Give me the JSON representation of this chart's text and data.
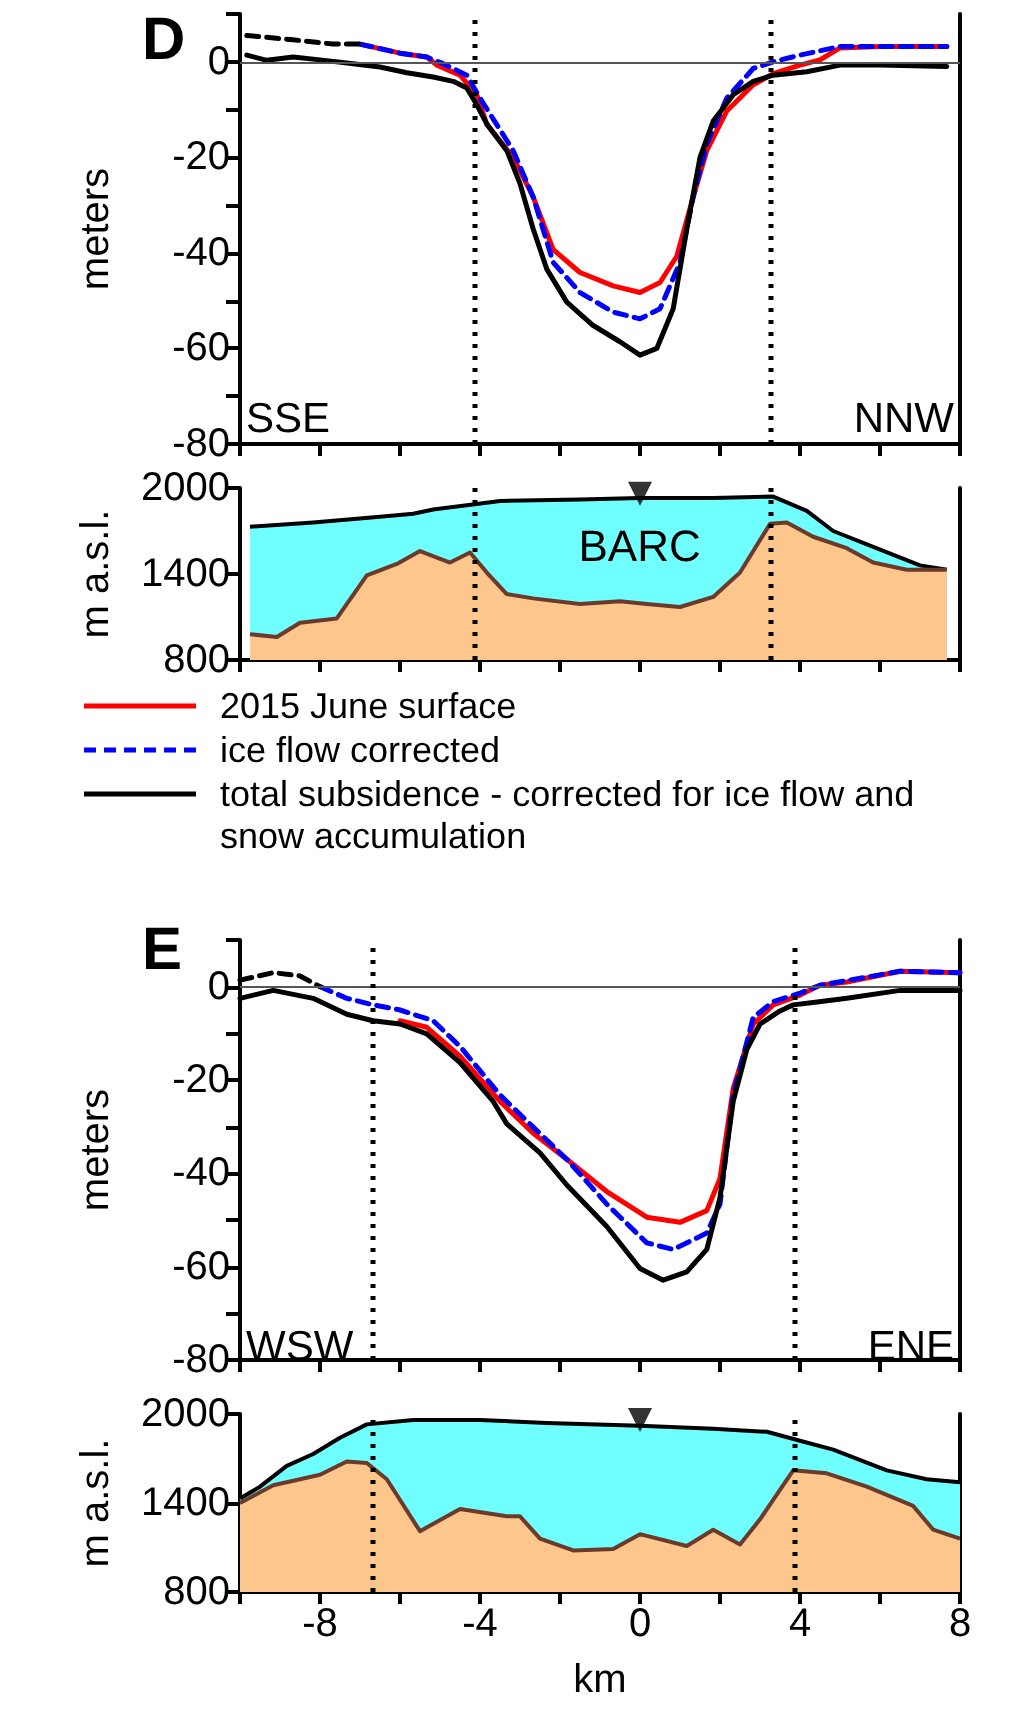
{
  "chart_data": [
    {
      "type": "line",
      "title": "D",
      "ylabel": "meters",
      "xlim": [
        -10,
        8
      ],
      "ylim": [
        -80,
        10
      ],
      "xticks": [
        {
          "value": -10,
          "label": null
        },
        -8,
        {
          "value": -6,
          "label": null
        },
        -4,
        {
          "value": -2,
          "label": null
        },
        0,
        {
          "value": 2,
          "label": null
        },
        4,
        {
          "value": 6,
          "label": null
        },
        8
      ],
      "yticks": [
        {
          "value": 10,
          "label": null
        },
        0,
        {
          "value": -10,
          "label": null
        },
        -20,
        {
          "value": -30,
          "label": null
        },
        -40,
        {
          "value": -50,
          "label": null
        },
        -60,
        {
          "value": -70,
          "label": null
        },
        -80
      ],
      "tick_labels": "y",
      "legend": "bottom",
      "annotations": [
        "SSE",
        "NNW"
      ],
      "ref_lines": [
        {
          "axis": "y",
          "value": 0,
          "color": "#555555",
          "line_style": "solid"
        },
        {
          "axis": "x",
          "value": -4.12,
          "color": "#000000",
          "line_style": "dotted"
        },
        {
          "axis": "x",
          "value": 3.28,
          "color": "#000000",
          "line_style": "dotted"
        }
      ],
      "series": [
        {
          "name": "2015 June surface",
          "color": "#ff0000",
          "line_style": "solid",
          "x": [
            -7.0,
            -6.0,
            -5.33,
            -5.08,
            -4.5,
            -4.08,
            -3.83,
            -3.17,
            -2.67,
            -2.17,
            -1.5,
            -0.67,
            0,
            0.5,
            0.92,
            1.33,
            1.67,
            2.17,
            2.83,
            3.33,
            4.0,
            4.5,
            5.0,
            6.0,
            7.67
          ],
          "values": [
            3.7,
            1.8,
            1.0,
            -0.7,
            -2.8,
            -6.9,
            -13.1,
            -20,
            -28.3,
            -39.3,
            -44.1,
            -46.9,
            -48.3,
            -46.2,
            -40.7,
            -28.3,
            -18.6,
            -10.3,
            -4.8,
            -2.5,
            -0.7,
            0.4,
            2.9,
            3.2,
            3.2
          ]
        },
        {
          "name": "ice flow corrected",
          "color": "#0000ff",
          "line_style": "dashed",
          "x": [
            -7.0,
            -6.0,
            -5.33,
            -4.92,
            -4.33,
            -4.0,
            -3.17,
            -2.67,
            -2.17,
            -1.5,
            -0.67,
            0,
            0.5,
            1.0,
            1.33,
            1.67,
            2.17,
            2.83,
            3.33,
            4.0,
            5.0,
            7.67
          ],
          "values": [
            3.7,
            1.8,
            1.0,
            -0.4,
            -2.8,
            -7.6,
            -18.6,
            -28.3,
            -42,
            -48.3,
            -52.4,
            -53.8,
            -51.7,
            -42,
            -28.3,
            -17.2,
            -7.6,
            -1.4,
            0,
            1.4,
            3.2,
            3.2
          ]
        },
        {
          "name": "total subsidence - corrected for ice flow and snow accumulation",
          "color": "#000000",
          "line_style": "solid",
          "x": [
            -9.83,
            -9.33,
            -8.67,
            -8.0,
            -7.17,
            -6.5,
            -5.83,
            -5.17,
            -4.67,
            -4.33,
            -4.08,
            -3.83,
            -3.33,
            -3.0,
            -2.67,
            -2.33,
            -1.83,
            -1.17,
            -0.5,
            0,
            0.42,
            0.83,
            1.17,
            1.5,
            1.83,
            2.33,
            2.83,
            3.33,
            4.17,
            5.0,
            6.0,
            7.67
          ],
          "values": [
            1.4,
            0.3,
            1.0,
            0.4,
            -0.4,
            -1.1,
            -2.3,
            -3.2,
            -4.1,
            -5.5,
            -9,
            -13,
            -18.6,
            -25.5,
            -35,
            -43.4,
            -50.3,
            -55.2,
            -58.6,
            -61.4,
            -60,
            -51.7,
            -35,
            -20,
            -12.4,
            -6.9,
            -4.1,
            -2.8,
            -2.1,
            -0.7,
            -0.7,
            -1.0
          ]
        },
        {
          "color": "#000000",
          "line_style": "dashed",
          "x": [
            -9.83,
            -8.67,
            -7.67,
            -7.0
          ],
          "values": [
            5.5,
            4.6,
            3.7,
            3.7
          ]
        }
      ]
    },
    {
      "type": "area",
      "ylabel": "m a.s.l.",
      "xlim": [
        -10,
        8
      ],
      "ylim": [
        800,
        2000
      ],
      "xticks": [
        {
          "value": -10,
          "label": null
        },
        -8,
        {
          "value": -6,
          "label": null
        },
        -4,
        {
          "value": -2,
          "label": null
        },
        0,
        {
          "value": 2,
          "label": null
        },
        4,
        {
          "value": 6,
          "label": null
        },
        8
      ],
      "yticks": [
        800,
        1400,
        2000
      ],
      "tick_labels": "y",
      "annotations": [
        "BARC"
      ],
      "ref_lines": [
        {
          "axis": "x",
          "value": -4.12,
          "color": "#000000",
          "line_style": "dotted"
        },
        {
          "axis": "x",
          "value": 3.28,
          "color": "#000000",
          "line_style": "dotted"
        }
      ],
      "series": [
        {
          "color": "#6fffff",
          "x": [
            -9.75,
            -8.17,
            -6.5,
            -5.67,
            -5.17,
            -4.33,
            -3.5,
            -1.5,
            0,
            1.83,
            3.33,
            4.17,
            4.83,
            5.83,
            7.0,
            7.67
          ],
          "values": [
            1730,
            1760,
            1800,
            1820,
            1850,
            1880,
            1910,
            1920,
            1930,
            1930,
            1940,
            1840,
            1700,
            1590,
            1460,
            1430
          ]
        },
        {
          "color": "#fdc68c",
          "x": [
            -9.75,
            -9.08,
            -8.5,
            -7.58,
            -6.83,
            -6.08,
            -5.5,
            -4.75,
            -4.25,
            -3.83,
            -3.33,
            -2.67,
            -1.5,
            -0.5,
            0.17,
            1.0,
            1.83,
            2.5,
            3.25,
            3.67,
            4.33,
            5.17,
            5.83,
            6.67,
            7.67
          ],
          "values": [
            980,
            960,
            1060,
            1090,
            1390,
            1470,
            1560,
            1480,
            1550,
            1410,
            1260,
            1230,
            1190,
            1210,
            1190,
            1170,
            1240,
            1410,
            1750,
            1760,
            1660,
            1580,
            1480,
            1430,
            1430
          ]
        },
        {
          "type": "scatter",
          "color": "#000000",
          "marker": "triangle",
          "x": [
            0
          ],
          "values": [
            1960
          ]
        }
      ]
    },
    {
      "type": "line",
      "title": "E",
      "ylabel": "meters",
      "xlim": [
        -10,
        8
      ],
      "ylim": [
        -80,
        10
      ],
      "xticks": [
        {
          "value": -10,
          "label": null
        },
        -8,
        {
          "value": -6,
          "label": null
        },
        -4,
        {
          "value": -2,
          "label": null
        },
        0,
        {
          "value": 2,
          "label": null
        },
        4,
        {
          "value": 6,
          "label": null
        },
        8
      ],
      "yticks": [
        {
          "value": 10,
          "label": null
        },
        0,
        {
          "value": -10,
          "label": null
        },
        -20,
        {
          "value": -30,
          "label": null
        },
        -40,
        {
          "value": -50,
          "label": null
        },
        -60,
        {
          "value": -70,
          "label": null
        },
        -80
      ],
      "tick_labels": "y",
      "annotations": [
        "WSW",
        "ENE"
      ],
      "ref_lines": [
        {
          "axis": "y",
          "value": 0,
          "color": "#555555",
          "line_style": "solid"
        },
        {
          "axis": "x",
          "value": -6.68,
          "color": "#000000",
          "line_style": "dotted"
        },
        {
          "axis": "x",
          "value": 3.85,
          "color": "#000000",
          "line_style": "dotted"
        }
      ],
      "series": [
        {
          "color": "#ff0000",
          "line_style": "solid",
          "x": [
            -6.0,
            -5.33,
            -4.5,
            -3.5,
            -2.67,
            -1.83,
            -0.83,
            0.17,
            1.0,
            1.67,
            2.0,
            2.33,
            2.83,
            3.33,
            4.0,
            4.5,
            5.17,
            6.5,
            8.0
          ],
          "values": [
            -7.3,
            -8.7,
            -14.9,
            -24.6,
            -31.4,
            -37,
            -43.9,
            -49.4,
            -50.5,
            -48,
            -41.1,
            -21.8,
            -8.0,
            -3.9,
            -1.8,
            0.3,
            1.0,
            3.3,
            3.0
          ]
        },
        {
          "color": "#0000ff",
          "line_style": "dashed",
          "x": [
            -8.0,
            -7.33,
            -6.67,
            -6.0,
            -5.17,
            -4.5,
            -3.5,
            -2.67,
            -1.83,
            -0.83,
            0.17,
            0.83,
            1.67,
            2.0,
            2.33,
            2.83,
            3.33,
            4.0,
            4.5,
            6.5,
            8.0
          ],
          "values": [
            0,
            -2.5,
            -3.9,
            -5.0,
            -7.3,
            -12.8,
            -23.2,
            -30.1,
            -37,
            -46.6,
            -54.9,
            -56.3,
            -52.8,
            -46.6,
            -23.2,
            -6.6,
            -3.2,
            -1.4,
            0.3,
            3.3,
            3.0
          ]
        },
        {
          "color": "#000000",
          "line_style": "solid",
          "x": [
            -10,
            -9.17,
            -8.17,
            -7.33,
            -6.67,
            -6.0,
            -5.33,
            -4.5,
            -3.67,
            -3.33,
            -2.5,
            -1.83,
            -0.83,
            0,
            0.58,
            1.17,
            1.67,
            2.0,
            2.33,
            2.67,
            3.0,
            3.5,
            3.83,
            4.33,
            5.17,
            6.5,
            8.0
          ],
          "values": [
            -2.5,
            -0.8,
            -2.5,
            -5.9,
            -7.3,
            -8.0,
            -10.1,
            -16.3,
            -24.6,
            -29.4,
            -35.6,
            -42.5,
            -51.4,
            -60.4,
            -62.9,
            -61.1,
            -56.3,
            -45.2,
            -24.6,
            -13.5,
            -8.0,
            -5.2,
            -3.9,
            -3.4,
            -2.5,
            -0.8,
            -0.8
          ]
        },
        {
          "color": "#000000",
          "line_style": "dashed",
          "x": [
            -10,
            -9.17,
            -8.5,
            -8.0
          ],
          "values": [
            1.4,
            3.0,
            2.3,
            0
          ]
        }
      ]
    },
    {
      "type": "area",
      "ylabel": "m a.s.l.",
      "xlabel": "km",
      "xlim": [
        -10,
        8
      ],
      "ylim": [
        800,
        2000
      ],
      "xticks": [
        {
          "value": -10,
          "label": null
        },
        -8,
        {
          "value": -6,
          "label": null
        },
        -4,
        {
          "value": -2,
          "label": null
        },
        0,
        {
          "value": 2,
          "label": null
        },
        4,
        {
          "value": 6,
          "label": null
        },
        8
      ],
      "yticks": [
        800,
        1400,
        2000
      ],
      "ref_lines": [
        {
          "axis": "x",
          "value": -6.68,
          "color": "#000000",
          "line_style": "dotted"
        },
        {
          "axis": "x",
          "value": 3.85,
          "color": "#000000",
          "line_style": "dotted"
        }
      ],
      "series": [
        {
          "color": "#6fffff",
          "x": [
            -10,
            -9.5,
            -8.83,
            -8.17,
            -7.5,
            -6.83,
            -5.67,
            -4.0,
            -2.33,
            0,
            1.83,
            3.17,
            4.0,
            4.83,
            6.17,
            7.17,
            8.0
          ],
          "values": [
            1430,
            1510,
            1650,
            1730,
            1840,
            1930,
            1960,
            1960,
            1940,
            1920,
            1900,
            1880,
            1820,
            1760,
            1620,
            1560,
            1540
          ]
        },
        {
          "color": "#fdc68c",
          "x": [
            -10,
            -9.17,
            -8.0,
            -7.33,
            -6.83,
            -6.33,
            -5.5,
            -4.5,
            -3.33,
            -3.0,
            -2.5,
            -1.67,
            -0.67,
            0,
            1.17,
            1.83,
            2.5,
            3.0,
            3.83,
            4.67,
            5.67,
            6.83,
            7.33,
            8.0
          ],
          "values": [
            1400,
            1520,
            1590,
            1680,
            1670,
            1560,
            1210,
            1360,
            1310,
            1310,
            1160,
            1080,
            1090,
            1190,
            1110,
            1220,
            1120,
            1290,
            1620,
            1600,
            1510,
            1380,
            1220,
            1160
          ]
        },
        {
          "type": "scatter",
          "color": "#000000",
          "marker": "triangle",
          "x": [
            0
          ],
          "values": [
            1960
          ]
        }
      ]
    }
  ]
}
